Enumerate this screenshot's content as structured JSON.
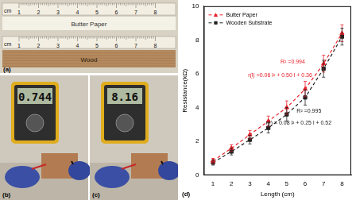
{
  "photos": {
    "a": {
      "label": "(a)",
      "rulers": [
        {
          "unit": "cm",
          "ticks": [
            1,
            2,
            3,
            4,
            5,
            6,
            7,
            8
          ],
          "caption": "Butter Paper"
        },
        {
          "unit": "cm",
          "ticks": [
            1,
            2,
            3,
            4,
            5,
            6,
            7,
            8
          ],
          "caption": "Wood"
        }
      ]
    },
    "b": {
      "label": "(b)",
      "reading": "0.744"
    },
    "c": {
      "label": "(c)",
      "reading": "8.16"
    }
  },
  "chart_data": {
    "type": "scatter",
    "title": "(d)",
    "x_label": "Length (cm)",
    "y_label": "Resistance(kΩ)",
    "x": [
      1,
      2,
      3,
      4,
      5,
      6,
      7,
      8
    ],
    "series": [
      {
        "name": "Butter Paper",
        "color": "#e8202a",
        "marker": "triangle",
        "line_style": "dashed",
        "values": [
          0.85,
          1.6,
          2.4,
          3.2,
          4.0,
          5.1,
          6.6,
          8.4
        ],
        "errors": [
          0.15,
          0.2,
          0.25,
          0.3,
          0.4,
          0.45,
          0.5,
          0.5
        ]
      },
      {
        "name": "Wooden Substrate",
        "color": "#222222",
        "marker": "square",
        "line_style": "dashed",
        "values": [
          0.75,
          1.4,
          2.1,
          2.8,
          3.6,
          4.6,
          6.3,
          8.2
        ],
        "errors": [
          0.15,
          0.2,
          0.25,
          0.3,
          0.4,
          0.45,
          0.5,
          0.5
        ]
      }
    ],
    "xlim": [
      0.5,
      8.5
    ],
    "xticks": [
      1,
      2,
      3,
      4,
      5,
      6,
      7,
      8
    ],
    "ylim": [
      0,
      10
    ],
    "yticks": [
      0,
      2,
      4,
      6,
      8,
      10
    ],
    "grid": false,
    "legend": "upper left",
    "annotations": [
      {
        "text": "R² =0.994",
        "color": "#e8202a"
      },
      {
        "text": "r(l) =0.06 l² + 0.50 l + 0.36",
        "color": "#e8202a"
      },
      {
        "text": "R² =0.995",
        "color": "#222222"
      },
      {
        "text": "r(l) = 0.08 l² + 0.25 l + 0.52",
        "color": "#222222"
      }
    ]
  }
}
